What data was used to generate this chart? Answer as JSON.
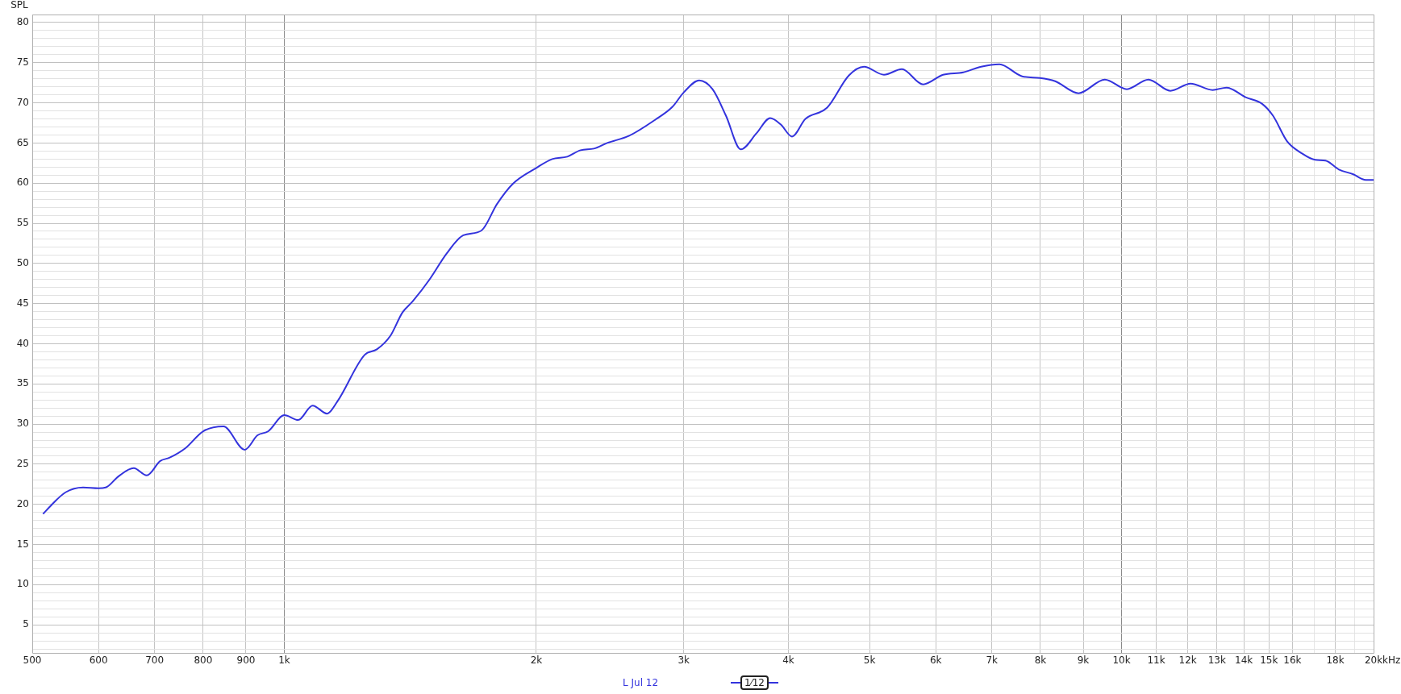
{
  "chart_data": {
    "type": "line",
    "ylabel": "SPL",
    "log": "x",
    "grid": true,
    "legend": "bottom",
    "marker": "none",
    "line_style": "solid",
    "annotations": [
      "1⁄12"
    ],
    "xlim": [
      500,
      20000
    ],
    "ylim": [
      1.5,
      81
    ],
    "xticks": [
      500,
      600,
      700,
      800,
      900,
      {
        "value": 1000,
        "label": "1k"
      },
      {
        "value": 2000,
        "label": "2k"
      },
      {
        "value": 3000,
        "label": "3k"
      },
      {
        "value": 4000,
        "label": "4k"
      },
      {
        "value": 5000,
        "label": "5k"
      },
      {
        "value": 6000,
        "label": "6k"
      },
      {
        "value": 7000,
        "label": "7k"
      },
      {
        "value": 8000,
        "label": "8k"
      },
      {
        "value": 9000,
        "label": "9k"
      },
      {
        "value": 10000,
        "label": "10k"
      },
      {
        "value": 11000,
        "label": "11k"
      },
      {
        "value": 12000,
        "label": "12k"
      },
      {
        "value": 13000,
        "label": "13k"
      },
      {
        "value": 14000,
        "label": "14k"
      },
      {
        "value": 15000,
        "label": "15k"
      },
      {
        "value": 16000,
        "label": "16k"
      },
      {
        "value": 17000,
        "label": null
      },
      {
        "value": 18000,
        "label": "18k"
      },
      {
        "value": 19000,
        "label": null
      },
      {
        "value": 20000,
        "label": "20k"
      }
    ],
    "xlabel": "kHz",
    "yticks": [
      {
        "value": 2,
        "label": null
      },
      {
        "value": 3,
        "label": null
      },
      {
        "value": 4,
        "label": null
      },
      5,
      {
        "value": 6,
        "label": null
      },
      {
        "value": 7,
        "label": null
      },
      {
        "value": 8,
        "label": null
      },
      {
        "value": 9,
        "label": null
      },
      10,
      {
        "value": 11,
        "label": null
      },
      {
        "value": 12,
        "label": null
      },
      {
        "value": 13,
        "label": null
      },
      {
        "value": 14,
        "label": null
      },
      15,
      {
        "value": 16,
        "label": null
      },
      {
        "value": 17,
        "label": null
      },
      {
        "value": 18,
        "label": null
      },
      {
        "value": 19,
        "label": null
      },
      20,
      {
        "value": 21,
        "label": null
      },
      {
        "value": 22,
        "label": null
      },
      {
        "value": 23,
        "label": null
      },
      {
        "value": 24,
        "label": null
      },
      25,
      {
        "value": 26,
        "label": null
      },
      {
        "value": 27,
        "label": null
      },
      {
        "value": 28,
        "label": null
      },
      {
        "value": 29,
        "label": null
      },
      30,
      {
        "value": 31,
        "label": null
      },
      {
        "value": 32,
        "label": null
      },
      {
        "value": 33,
        "label": null
      },
      {
        "value": 34,
        "label": null
      },
      35,
      {
        "value": 36,
        "label": null
      },
      {
        "value": 37,
        "label": null
      },
      {
        "value": 38,
        "label": null
      },
      {
        "value": 39,
        "label": null
      },
      40,
      {
        "value": 41,
        "label": null
      },
      {
        "value": 42,
        "label": null
      },
      {
        "value": 43,
        "label": null
      },
      {
        "value": 44,
        "label": null
      },
      45,
      {
        "value": 46,
        "label": null
      },
      {
        "value": 47,
        "label": null
      },
      {
        "value": 48,
        "label": null
      },
      {
        "value": 49,
        "label": null
      },
      50,
      {
        "value": 51,
        "label": null
      },
      {
        "value": 52,
        "label": null
      },
      {
        "value": 53,
        "label": null
      },
      {
        "value": 54,
        "label": null
      },
      55,
      {
        "value": 56,
        "label": null
      },
      {
        "value": 57,
        "label": null
      },
      {
        "value": 58,
        "label": null
      },
      {
        "value": 59,
        "label": null
      },
      60,
      {
        "value": 61,
        "label": null
      },
      {
        "value": 62,
        "label": null
      },
      {
        "value": 63,
        "label": null
      },
      {
        "value": 64,
        "label": null
      },
      65,
      {
        "value": 66,
        "label": null
      },
      {
        "value": 67,
        "label": null
      },
      {
        "value": 68,
        "label": null
      },
      {
        "value": 69,
        "label": null
      },
      70,
      {
        "value": 71,
        "label": null
      },
      {
        "value": 72,
        "label": null
      },
      {
        "value": 73,
        "label": null
      },
      {
        "value": 74,
        "label": null
      },
      75,
      {
        "value": 76,
        "label": null
      },
      {
        "value": 77,
        "label": null
      },
      {
        "value": 78,
        "label": null
      },
      {
        "value": 79,
        "label": null
      },
      80
    ],
    "series": [
      {
        "name": "L Jul 12",
        "color": "#3333dd",
        "x": [
          515,
          528,
          548,
          575,
          600,
          612,
          634,
          661,
          685,
          711,
          729,
          762,
          800,
          846,
          897,
          929,
          957,
          1000,
          1039,
          1081,
          1125,
          1157,
          1247,
          1290,
          1339,
          1384,
          1424,
          1491,
          1562,
          1636,
          1720,
          1795,
          1874,
          2000,
          2089,
          2178,
          2259,
          2343,
          2430,
          2582,
          2774,
          2908,
          3000,
          3130,
          3247,
          3369,
          3510,
          3664,
          3805,
          3918,
          4040,
          4192,
          4450,
          4723,
          4925,
          5203,
          5465,
          5794,
          6121,
          6471,
          6797,
          7146,
          7608,
          7986,
          8331,
          8884,
          9551,
          10146,
          10765,
          11437,
          12090,
          12844,
          13348,
          14066,
          14711,
          15166,
          15768,
          16428,
          17034,
          17524,
          18182,
          18914,
          19575,
          20000
        ],
        "values": [
          18.8,
          20.0,
          21.5,
          22.1,
          22.0,
          22.1,
          23.5,
          24.5,
          23.6,
          25.4,
          25.8,
          27.0,
          29.1,
          29.7,
          26.8,
          28.6,
          29.1,
          31.1,
          30.5,
          32.3,
          31.3,
          32.8,
          38.6,
          39.3,
          41.0,
          43.9,
          45.3,
          48.0,
          51.2,
          53.5,
          54.1,
          57.4,
          59.9,
          61.9,
          63.0,
          63.3,
          64.1,
          64.3,
          65.0,
          65.9,
          67.9,
          69.5,
          71.3,
          72.8,
          71.7,
          68.4,
          64.2,
          66.2,
          68.1,
          67.3,
          65.8,
          68.0,
          69.4,
          73.4,
          74.5,
          73.5,
          74.2,
          72.3,
          73.5,
          73.8,
          74.5,
          74.8,
          73.3,
          73.1,
          72.7,
          71.2,
          72.9,
          71.7,
          72.9,
          71.5,
          72.4,
          71.6,
          71.9,
          70.7,
          69.9,
          68.4,
          65.2,
          63.7,
          62.9,
          62.8,
          61.7,
          61.1,
          60.4,
          60.4
        ]
      }
    ]
  }
}
